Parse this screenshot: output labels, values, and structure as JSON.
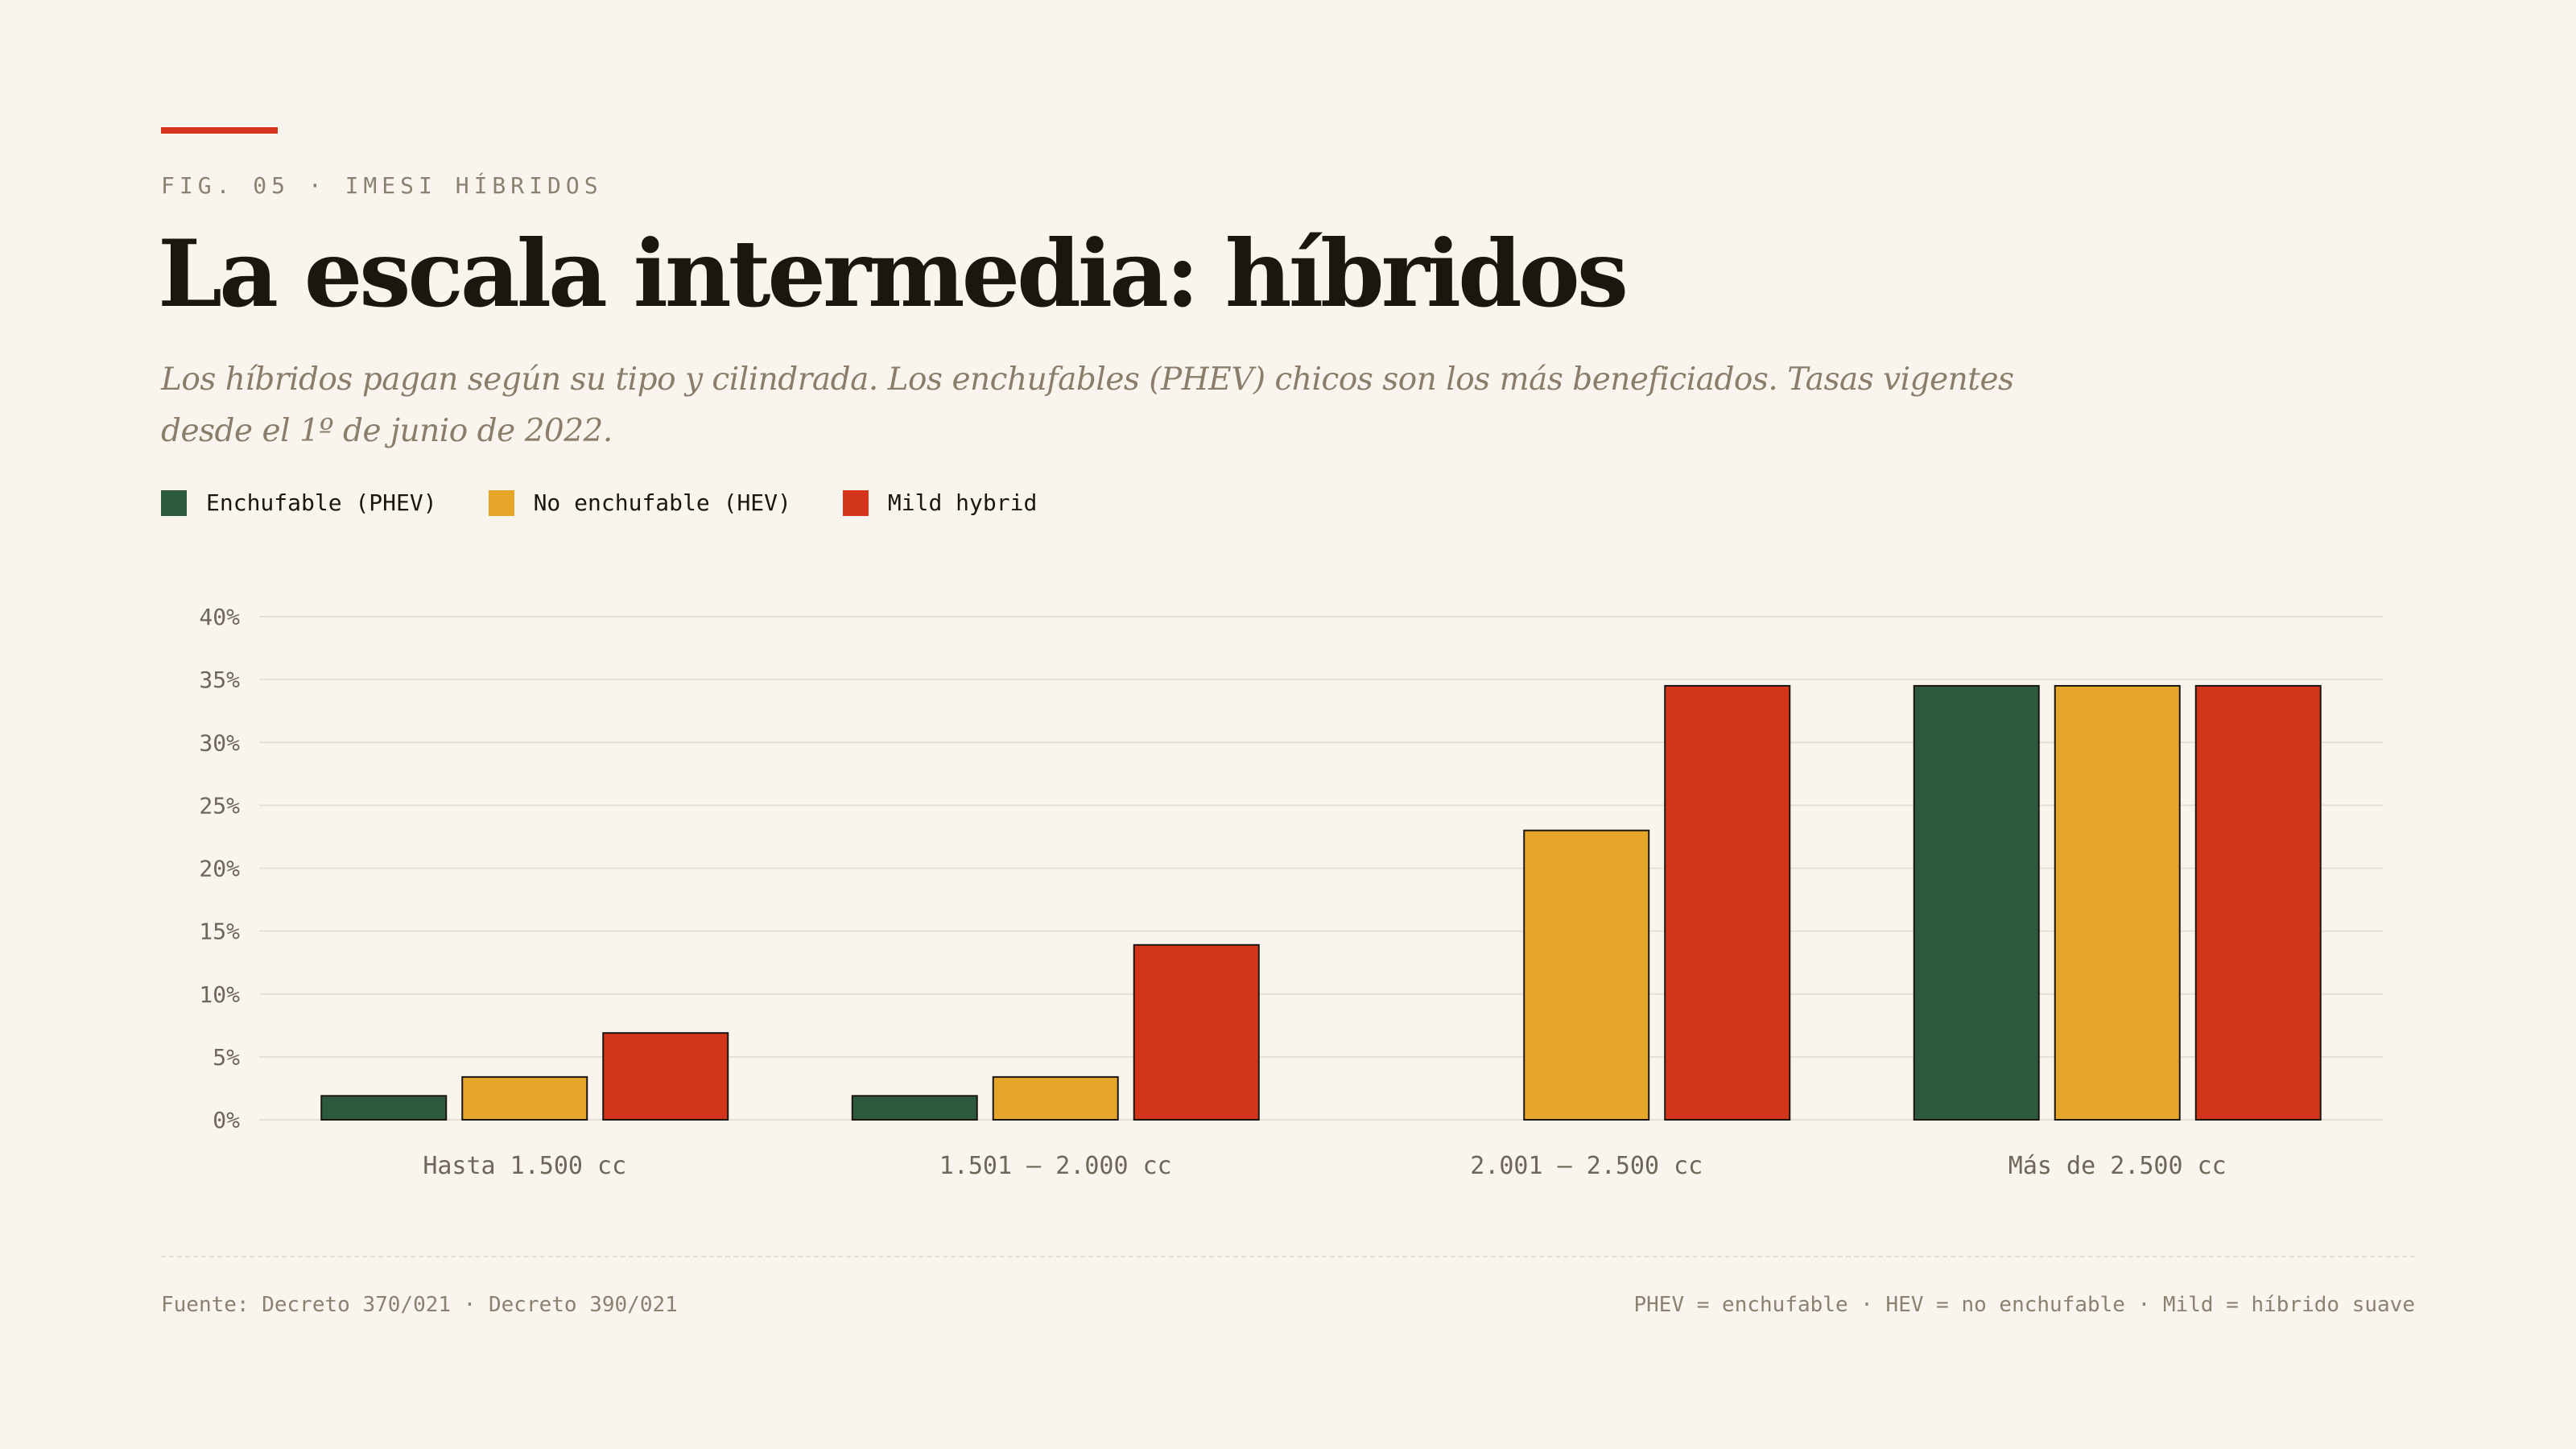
{
  "header": {
    "eyebrow": "FIG. 05 · IMESI HÍBRIDOS",
    "title": "La escala intermedia: híbridos",
    "subtitle": "Los híbridos pagan según su tipo y cilindrada. Los enchufables (PHEV) chicos son los más beneficiados. Tasas vigentes desde el 1º de junio de 2022."
  },
  "colors": {
    "accent": "#d4361c",
    "background": "#f9f5ee",
    "phev": "#2d5a3d",
    "hev": "#e6a62a",
    "mild": "#d4361c",
    "grid": "#e6e0d4",
    "axis_text": "#6e6658",
    "bar_stroke": "#1b1710"
  },
  "legend": [
    {
      "label": "Enchufable (PHEV)",
      "color": "#2d5a3d"
    },
    {
      "label": "No enchufable (HEV)",
      "color": "#e6a62a"
    },
    {
      "label": "Mild hybrid",
      "color": "#d4361c"
    }
  ],
  "chart_data": {
    "type": "bar",
    "categories": [
      "Hasta 1.500 cc",
      "1.501 – 2.000 cc",
      "2.001 – 2.500 cc",
      "Más de 2.500 cc"
    ],
    "series": [
      {
        "name": "Enchufable (PHEV)",
        "color": "#2d5a3d",
        "values": [
          1.9,
          1.9,
          0,
          34.5
        ]
      },
      {
        "name": "No enchufable (HEV)",
        "color": "#e6a62a",
        "values": [
          3.4,
          3.4,
          23,
          34.5
        ]
      },
      {
        "name": "Mild hybrid",
        "color": "#d4361c",
        "values": [
          6.9,
          13.9,
          34.5,
          34.5
        ]
      }
    ],
    "ylim": [
      0,
      40
    ],
    "yticks": [
      0,
      5,
      10,
      15,
      20,
      25,
      30,
      35,
      40
    ],
    "ytick_labels": [
      "0%",
      "5%",
      "10%",
      "15%",
      "20%",
      "25%",
      "30%",
      "35%",
      "40%"
    ],
    "grid": true,
    "legend_position": "top-left"
  },
  "footer": {
    "source": "Fuente: Decreto 370/021 · Decreto 390/021",
    "note": "PHEV = enchufable · HEV = no enchufable · Mild = híbrido suave"
  }
}
